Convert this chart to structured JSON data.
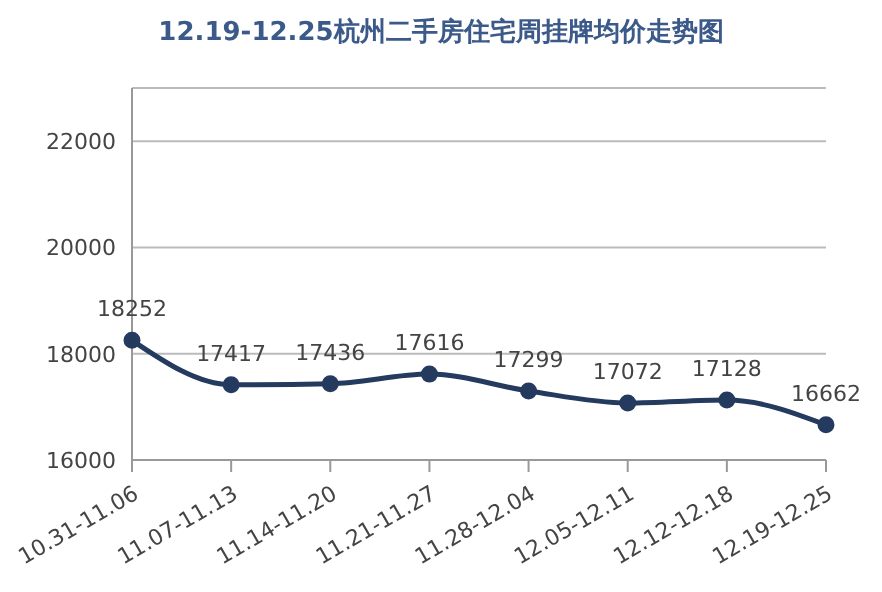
{
  "chart_data": {
    "type": "line",
    "title": "12.19-12.25杭州二手房住宅周挂牌均价走势图",
    "categories": [
      "10.31-11.06",
      "11.07-11.13",
      "11.14-11.20",
      "11.21-11.27",
      "11.28-12.04",
      "12.05-12.11",
      "12.12-12.18",
      "12.19-12.25"
    ],
    "series": [
      {
        "color": "#243a5e",
        "values": [
          18252,
          17417,
          17436,
          17616,
          17299,
          17072,
          17128,
          16662
        ]
      }
    ],
    "ylim": [
      16000,
      23000
    ],
    "yticks": [
      16000,
      18000,
      20000,
      22000
    ],
    "grid": "y",
    "marker": "circle",
    "data_labels": true
  }
}
